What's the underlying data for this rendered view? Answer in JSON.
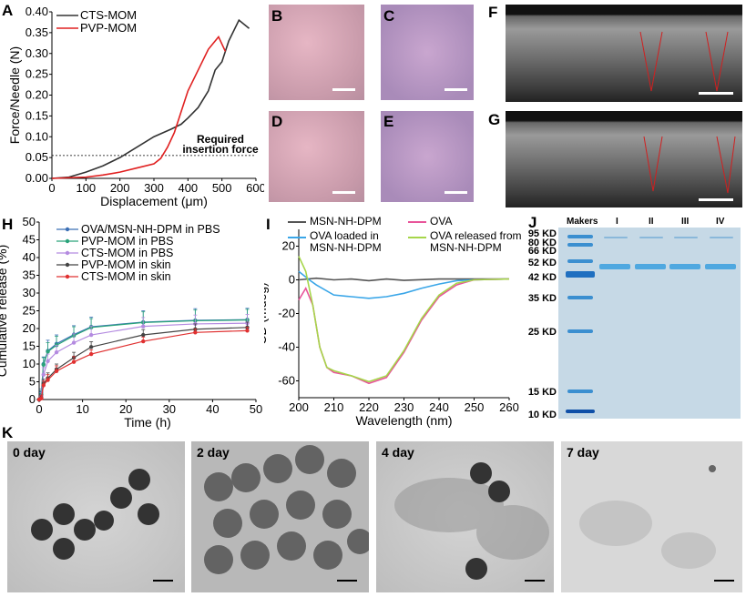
{
  "panels": {
    "A": "A",
    "B": "B",
    "C": "C",
    "D": "D",
    "E": "E",
    "F": "F",
    "G": "G",
    "H": "H",
    "I": "I",
    "J": "J",
    "K": "K"
  },
  "chart_data": [
    {
      "id": "A",
      "type": "line",
      "xlabel": "Displacement (μm)",
      "ylabel": "Force/Needle (N)",
      "xlim": [
        0,
        600
      ],
      "ylim": [
        0,
        0.4
      ],
      "xticks": [
        "0",
        "100",
        "200",
        "300",
        "400",
        "500",
        "600"
      ],
      "yticks": [
        "0.00",
        "0.05",
        "0.10",
        "0.15",
        "0.20",
        "0.25",
        "0.30",
        "0.35",
        "0.40"
      ],
      "legend": "top-left",
      "annotation": {
        "text1": "Required",
        "text2": "insertion force",
        "y": 0.055
      },
      "series": [
        {
          "name": "CTS-MOM",
          "color": "#333333",
          "x": [
            0,
            50,
            100,
            150,
            200,
            250,
            300,
            350,
            380,
            400,
            430,
            460,
            480,
            500,
            520,
            550,
            580
          ],
          "y": [
            0,
            0.003,
            0.015,
            0.03,
            0.05,
            0.075,
            0.1,
            0.118,
            0.13,
            0.145,
            0.17,
            0.21,
            0.26,
            0.28,
            0.33,
            0.38,
            0.36
          ]
        },
        {
          "name": "PVP-MOM",
          "color": "#e02020",
          "x": [
            0,
            100,
            150,
            200,
            250,
            300,
            320,
            340,
            360,
            380,
            400,
            430,
            460,
            490,
            510
          ],
          "y": [
            0,
            0.003,
            0.008,
            0.015,
            0.025,
            0.035,
            0.048,
            0.075,
            0.11,
            0.16,
            0.21,
            0.26,
            0.31,
            0.34,
            0.305
          ]
        }
      ]
    },
    {
      "id": "H",
      "type": "line",
      "xlabel": "Time (h)",
      "ylabel": "Cumulative release (%)",
      "xlim": [
        0,
        50
      ],
      "ylim": [
        0,
        50
      ],
      "xticks": [
        "0",
        "10",
        "20",
        "30",
        "40",
        "50"
      ],
      "yticks": [
        "0",
        "5",
        "10",
        "15",
        "20",
        "25",
        "30",
        "35",
        "40",
        "45",
        "50"
      ],
      "legend": "top-left",
      "x": [
        0,
        0.5,
        1,
        2,
        4,
        8,
        12,
        24,
        36,
        48
      ],
      "series": [
        {
          "name": "OVA/MSN-NH-DPM in PBS",
          "color": "#3a6fb5",
          "marker": "triangle",
          "values": [
            0,
            2,
            10,
            13.7,
            15.7,
            18.3,
            20.5,
            21.8,
            22.3,
            22.5
          ],
          "error": [
            0,
            1,
            2,
            3,
            2.5,
            2.5,
            2.7,
            3.2,
            3.3,
            3.2
          ]
        },
        {
          "name": "PVP-MOM in PBS",
          "color": "#2aa37a",
          "marker": "triangle-down",
          "values": [
            0,
            1.5,
            9.8,
            13.5,
            15.3,
            18,
            20.3,
            21.7,
            22.2,
            22.4
          ],
          "error": [
            0,
            1,
            2,
            2.5,
            2.5,
            2.5,
            2.5,
            3,
            3,
            3
          ]
        },
        {
          "name": "CTS-MOM in PBS",
          "color": "#b48be0",
          "marker": "diamond",
          "values": [
            0,
            1,
            7,
            10.8,
            13.3,
            16,
            18.2,
            20.6,
            21.3,
            21.5
          ],
          "error": [
            0,
            1,
            2,
            2,
            2,
            2.5,
            2.5,
            2.5,
            2.5,
            2.5
          ]
        },
        {
          "name": "PVP-MOM in skin",
          "color": "#444444",
          "marker": "square",
          "values": [
            0,
            0.5,
            4.5,
            6,
            8.5,
            11.8,
            14.8,
            18.2,
            19.8,
            20.3
          ],
          "error": [
            0,
            0.8,
            1.2,
            1.5,
            1.5,
            1.5,
            1.5,
            1.5,
            1.5,
            1.5
          ]
        },
        {
          "name": "CTS-MOM in skin",
          "color": "#e03030",
          "marker": "circle",
          "values": [
            0,
            0.3,
            4,
            5.5,
            8,
            10.6,
            12.8,
            16.4,
            18.9,
            19.4
          ],
          "error": [
            0,
            0.8,
            1.2,
            1.5,
            1.5,
            1.5,
            1.2,
            1.2,
            1,
            1
          ]
        }
      ]
    },
    {
      "id": "I",
      "type": "line",
      "xlabel": "Wavelength (nm)",
      "ylabel": "CD (mdeg)",
      "xlim": [
        200,
        260
      ],
      "ylim": [
        -70,
        30
      ],
      "xticks": [
        "200",
        "210",
        "220",
        "230",
        "240",
        "250",
        "260"
      ],
      "yticks": [
        "20",
        "0",
        "-20",
        "-40",
        "-60"
      ],
      "legend": "top",
      "series": [
        {
          "name": "MSN-NH-DPM",
          "color": "#555555",
          "x": [
            200,
            205,
            210,
            215,
            220,
            225,
            230,
            240,
            260
          ],
          "y": [
            0,
            1,
            0,
            0.5,
            -0.5,
            0.5,
            -0.3,
            0.5,
            0.5
          ]
        },
        {
          "name": "OVA loaded in MSN-NH-DPM",
          "color": "#3aa6e8",
          "x": [
            200,
            203,
            205,
            210,
            215,
            220,
            225,
            230,
            235,
            240,
            245,
            250,
            260
          ],
          "y": [
            5,
            0,
            -3,
            -9,
            -10,
            -11,
            -10,
            -8,
            -5,
            -2.5,
            -0.5,
            0,
            0.5
          ]
        },
        {
          "name": "OVA",
          "color": "#e8559a",
          "x": [
            200,
            202,
            204,
            206,
            208,
            210,
            215,
            220,
            225,
            230,
            235,
            240,
            245,
            250,
            260
          ],
          "y": [
            -12,
            -5,
            -15,
            -40,
            -52,
            -55,
            -57,
            -61.5,
            -58,
            -43,
            -24,
            -10,
            -3,
            0,
            0.5
          ]
        },
        {
          "name": "OVA released from MSN-NH-DPM",
          "color": "#a6d64a",
          "x": [
            200,
            202,
            204,
            206,
            208,
            210,
            215,
            220,
            225,
            230,
            235,
            240,
            245,
            250,
            260
          ],
          "y": [
            14,
            5,
            -15,
            -40,
            -52,
            -54,
            -57,
            -60.5,
            -57,
            -42,
            -23,
            -9,
            -2,
            0,
            0.5
          ]
        }
      ]
    }
  ],
  "legend_I": {
    "l1": "MSN-NH-DPM",
    "l2a": "OVA loaded in",
    "l2b": "MSN-NH-DPM",
    "l3": "OVA",
    "l4a": "OVA released from",
    "l4b": "MSN-NH-DPM"
  },
  "gel": {
    "lanes": [
      "Makers",
      "I",
      "II",
      "III",
      "IV"
    ],
    "markers": [
      "95 KD",
      "80 KD",
      "66 KD",
      "52 KD",
      "42 KD",
      "35 KD",
      "25 KD",
      "15 KD",
      "10 KD"
    ]
  },
  "tem": {
    "days": [
      "0 day",
      "2 day",
      "4 day",
      "7 day"
    ]
  }
}
